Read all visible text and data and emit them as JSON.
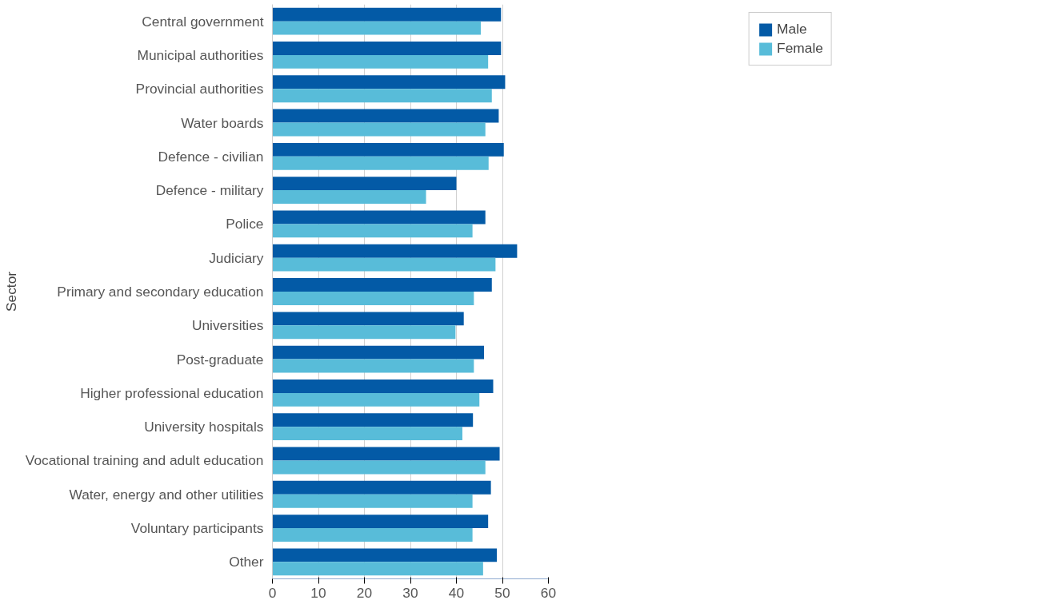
{
  "chart_data": {
    "type": "bar",
    "orientation": "horizontal",
    "ylabel": "Sector",
    "categories": [
      "Central government",
      "Municipal authorities",
      "Provincial authorities",
      "Water boards",
      "Defence - civilian",
      "Defence - military",
      "Police",
      "Judiciary",
      "Primary and secondary education",
      "Universities",
      "Post-graduate",
      "Higher professional education",
      "University hospitals",
      "Vocational training and adult education",
      "Water, energy and other utilities",
      "Voluntary participants",
      "Other"
    ],
    "series": [
      {
        "name": "Male",
        "color": "#035aa6",
        "values": [
          49.7,
          49.7,
          50.6,
          49.2,
          50.3,
          40.0,
          46.3,
          53.2,
          47.7,
          41.6,
          46.0,
          48.0,
          43.6,
          49.4,
          47.5,
          46.9,
          48.8
        ]
      },
      {
        "name": "Female",
        "color": "#58bcd9",
        "values": [
          45.3,
          46.9,
          47.7,
          46.3,
          47.0,
          33.4,
          43.5,
          48.5,
          43.8,
          39.8,
          43.8,
          45.0,
          41.3,
          46.3,
          43.5,
          43.5,
          45.8
        ]
      }
    ],
    "xlim": [
      0,
      60
    ],
    "xticks": [
      0,
      10,
      20,
      30,
      40,
      50,
      60
    ],
    "grid": "x",
    "legend": "top right"
  }
}
